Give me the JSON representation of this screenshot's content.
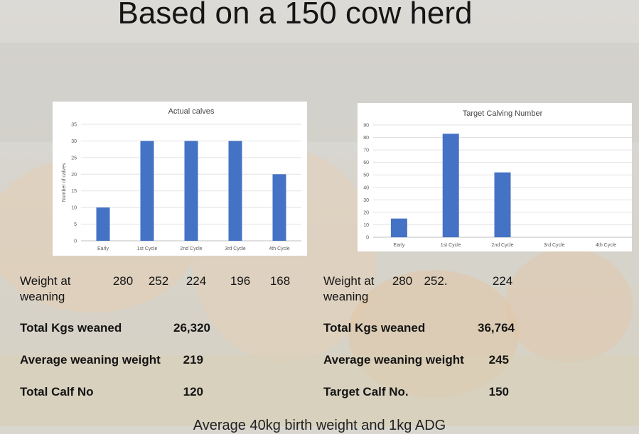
{
  "title": "Based on a 150 cow herd",
  "chart_data": [
    {
      "type": "bar",
      "title": "Actual calves",
      "ylabel": "Number of calves",
      "categories": [
        "Early",
        "1st Cycle",
        "2nd Cycle",
        "3rd Cycle",
        "4th Cycle"
      ],
      "values": [
        10,
        30,
        30,
        30,
        20
      ],
      "ylim": [
        0,
        35
      ],
      "yticks": [
        0,
        5,
        10,
        15,
        20,
        25,
        30,
        35
      ],
      "grid": true,
      "color": "#4472c4"
    },
    {
      "type": "bar",
      "title": "Target Calving Number",
      "ylabel": "",
      "categories": [
        "Early",
        "1st Cycle",
        "2nd Cycle",
        "3rd Cycle",
        "4th Cycle"
      ],
      "values": [
        15,
        83,
        52,
        0,
        0
      ],
      "ylim": [
        0,
        90
      ],
      "yticks": [
        0,
        10,
        20,
        30,
        40,
        50,
        60,
        70,
        80,
        90
      ],
      "grid": true,
      "color": "#4472c4"
    }
  ],
  "left_table": {
    "weight_label_line1": "Weight at",
    "weight_label_line2": "weaning",
    "weights": [
      "280",
      "252",
      "224",
      "196",
      "168"
    ],
    "total_kgs_label": "Total Kgs weaned",
    "total_kgs_value": "26,320",
    "avg_weight_label": "Average weaning weight",
    "avg_weight_value": "219",
    "calf_no_label": "Total Calf No",
    "calf_no_value": "120"
  },
  "right_table": {
    "weight_label_line1": "Weight at",
    "weight_label_line2": "weaning",
    "weights": [
      "280",
      "252.",
      "224"
    ],
    "total_kgs_label": "Total Kgs weaned",
    "total_kgs_value": "36,764",
    "avg_weight_label": "Average weaning weight",
    "avg_weight_value": "245",
    "calf_no_label": "Target Calf No.",
    "calf_no_value": "150"
  },
  "footer_text": "Average 40kg birth weight and 1kg ADG"
}
